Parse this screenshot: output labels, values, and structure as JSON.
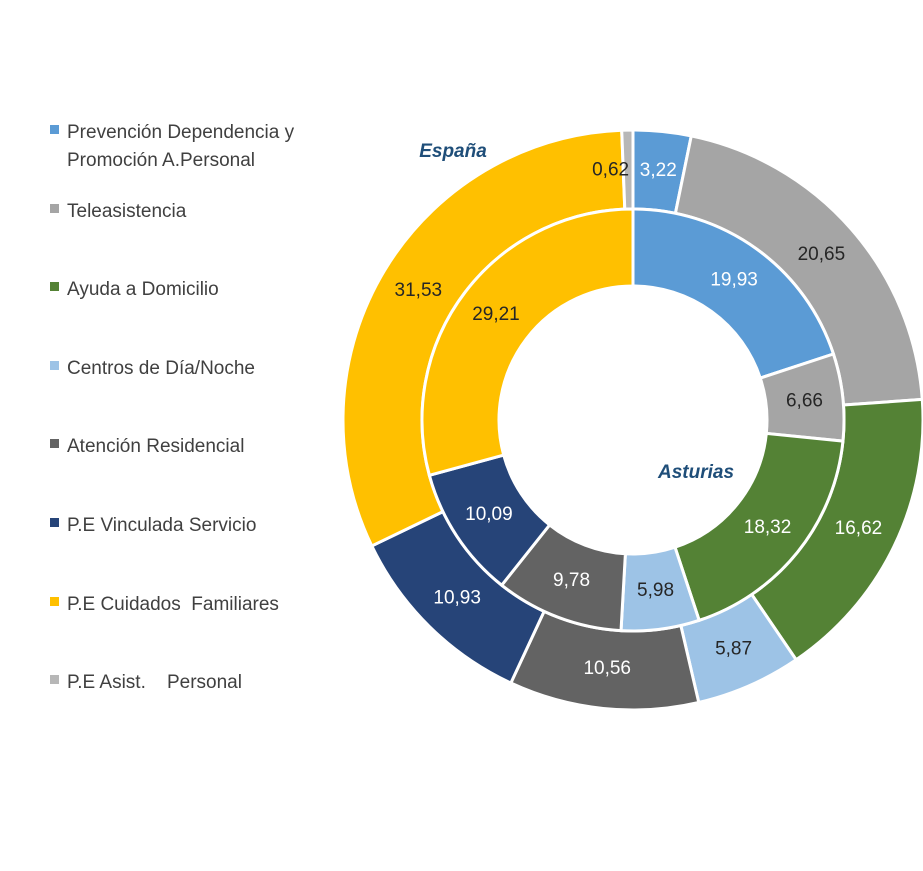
{
  "chart_data": {
    "type": "donut",
    "categories": [
      "Prevención Dependencia y Promoción A.Personal",
      "Teleasistencia",
      "Ayuda a Domicilio",
      "Centros de Día/Noche",
      "Atención Residencial",
      "P.E Vinculada Servicio",
      "P.E Cuidados  Familiares",
      "P.E Asist.    Personal"
    ],
    "colors": [
      "#5b9bd5",
      "#a5a5a5",
      "#548235",
      "#9dc3e6",
      "#636363",
      "#264478",
      "#ffc000",
      "#b7b7b7"
    ],
    "series": [
      {
        "name": "España",
        "ring": "outer",
        "values": [
          3.22,
          20.65,
          16.62,
          5.87,
          10.56,
          10.93,
          31.53,
          0.62
        ],
        "value_labels": [
          "3,22",
          "20,65",
          "16,62",
          "5,87",
          "10,56",
          "10,93",
          "31,53",
          "0,62"
        ]
      },
      {
        "name": "Asturias",
        "ring": "inner",
        "values": [
          19.93,
          6.66,
          18.32,
          5.98,
          9.78,
          10.09,
          29.21,
          0
        ],
        "value_labels": [
          "19,93",
          "6,66",
          "18,32",
          "5,98",
          "9,78",
          "10,09",
          "29,21",
          null
        ]
      }
    ]
  }
}
